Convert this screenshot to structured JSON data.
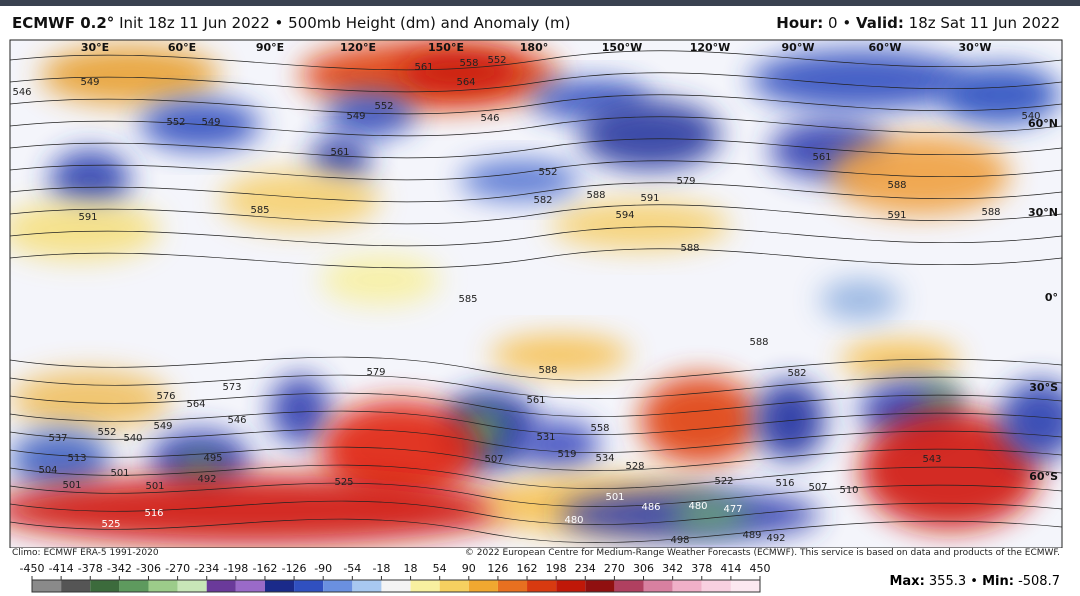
{
  "header": {
    "model": "ECMWF 0.2°",
    "description": "Init 18z 11 Jun 2022 • 500mb Height (dm) and Anomaly (m)",
    "hour_label": "Hour:",
    "hour": "0",
    "separator": "•",
    "valid_label": "Valid:",
    "valid": "18z Sat 11 Jun 2022"
  },
  "map": {
    "longitude_labels": [
      "30°E",
      "60°E",
      "90°E",
      "120°E",
      "150°E",
      "180°",
      "150°W",
      "120°W",
      "90°W",
      "60°W",
      "30°W"
    ],
    "latitude_labels": [
      "60°N",
      "30°N",
      "0°",
      "30°S",
      "60°S"
    ],
    "contour_labels": [
      "549",
      "546",
      "552",
      "549",
      "561",
      "558",
      "564",
      "552",
      "552",
      "549",
      "546",
      "561",
      "552",
      "582",
      "588",
      "591",
      "594",
      "579",
      "585",
      "588",
      "591",
      "588",
      "588",
      "561",
      "540",
      "591",
      "585",
      "588",
      "582",
      "588",
      "579",
      "576",
      "573",
      "564",
      "546",
      "549",
      "552",
      "540",
      "537",
      "513",
      "504",
      "501",
      "495",
      "492",
      "501",
      "501",
      "525",
      "516",
      "525",
      "531",
      "519",
      "507",
      "534",
      "528",
      "522",
      "516",
      "507",
      "510",
      "501",
      "486",
      "480",
      "477",
      "489",
      "480",
      "498",
      "492",
      "543",
      "558",
      "561"
    ]
  },
  "footer": {
    "climo": "Climo: ECMWF ERA-5 1991-2020",
    "copyright": "© 2022 European Centre for Medium-Range Weather Forecasts (ECMWF). This service is based on data and products of the ECMWF."
  },
  "colorbar": {
    "ticks": [
      -450,
      -414,
      -378,
      -342,
      -306,
      -270,
      -234,
      -198,
      -162,
      -126,
      -90,
      -54,
      -18,
      18,
      54,
      90,
      126,
      162,
      198,
      234,
      270,
      306,
      342,
      378,
      414,
      450
    ]
  },
  "stats": {
    "max_label": "Max:",
    "max": 355.3,
    "separator": "•",
    "min_label": "Min:",
    "min": -508.7
  }
}
